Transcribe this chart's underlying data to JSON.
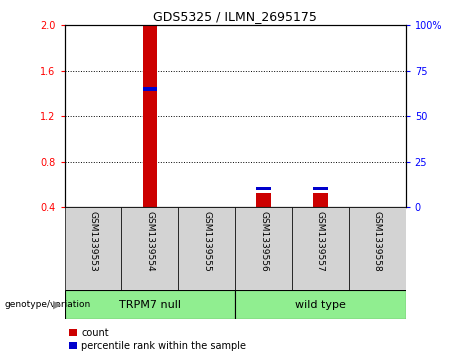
{
  "title": "GDS5325 / ILMN_2695175",
  "samples": [
    "GSM1339553",
    "GSM1339554",
    "GSM1339555",
    "GSM1339556",
    "GSM1339557",
    "GSM1339558"
  ],
  "count_values": [
    0.0,
    2.0,
    0.0,
    0.52,
    0.52,
    0.0
  ],
  "percentile_values_pct": [
    0.0,
    65.0,
    0.0,
    10.0,
    10.0,
    0.0
  ],
  "ylim_left": [
    0.4,
    2.0
  ],
  "ylim_right": [
    0,
    100
  ],
  "yticks_left": [
    0.4,
    0.8,
    1.2,
    1.6,
    2.0
  ],
  "yticks_right": [
    0,
    25,
    50,
    75,
    100
  ],
  "ytick_labels_right": [
    "0",
    "25",
    "50",
    "75",
    "100%"
  ],
  "count_color": "#CC0000",
  "percentile_color": "#0000CC",
  "bg_color": "#FFFFFF",
  "annotation_label": "genotype/variation",
  "legend_count": "count",
  "legend_percentile": "percentile rank within the sample",
  "group1_label": "TRPM7 null",
  "group1_samples": [
    0,
    1,
    2
  ],
  "group2_label": "wild type",
  "group2_samples": [
    3,
    4,
    5
  ],
  "group_color": "#90EE90",
  "sample_bg_color": "#D3D3D3",
  "bar_width": 0.25
}
